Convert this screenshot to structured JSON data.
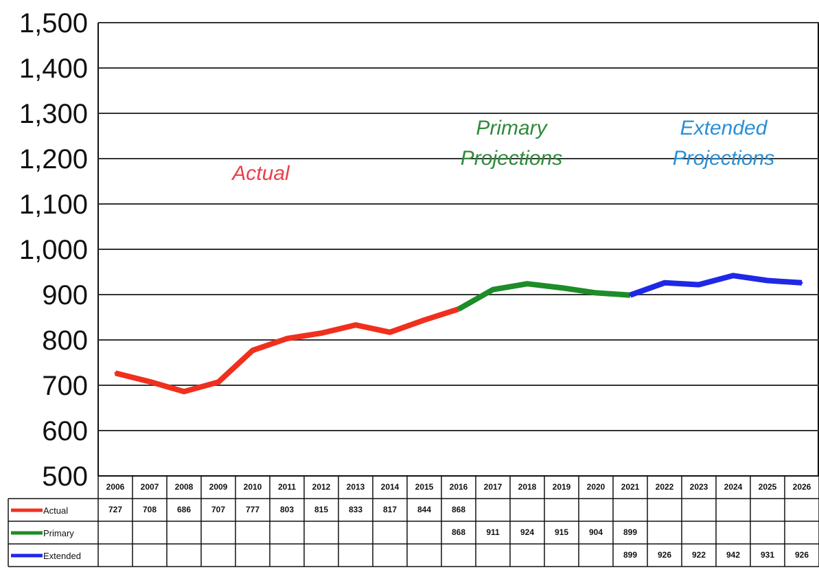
{
  "chart_data": {
    "type": "line",
    "x": [
      "2006",
      "2007",
      "2008",
      "2009",
      "2010",
      "2011",
      "2012",
      "2013",
      "2014",
      "2015",
      "2016",
      "2017",
      "2018",
      "2019",
      "2020",
      "2021",
      "2022",
      "2023",
      "2024",
      "2025",
      "2026"
    ],
    "ylim": [
      500,
      1500
    ],
    "yticks": [
      "500",
      "600",
      "700",
      "800",
      "900",
      "1,000",
      "1,100",
      "1,200",
      "1,300",
      "1,400",
      "1,500"
    ],
    "ytick_values": [
      500,
      600,
      700,
      800,
      900,
      1000,
      1100,
      1200,
      1300,
      1400,
      1500
    ],
    "grid": true,
    "legend_placement": "data table below chart",
    "series": [
      {
        "name": "Actual",
        "color": "#f0301e",
        "values": [
          727,
          708,
          686,
          707,
          777,
          803,
          815,
          833,
          817,
          844,
          868,
          null,
          null,
          null,
          null,
          null,
          null,
          null,
          null,
          null,
          null
        ]
      },
      {
        "name": "Primary",
        "color": "#1e8c28",
        "values": [
          null,
          null,
          null,
          null,
          null,
          null,
          null,
          null,
          null,
          null,
          868,
          911,
          924,
          915,
          904,
          899,
          null,
          null,
          null,
          null,
          null
        ]
      },
      {
        "name": "Extended",
        "color": "#1e28e6",
        "values": [
          null,
          null,
          null,
          null,
          null,
          null,
          null,
          null,
          null,
          null,
          null,
          null,
          null,
          null,
          null,
          899,
          926,
          922,
          942,
          931,
          926
        ]
      }
    ],
    "annotations": [
      {
        "lines": [
          "Actual"
        ],
        "color": "#e8404a"
      },
      {
        "lines": [
          "Primary",
          "Projections"
        ],
        "color": "#2e8b3a"
      },
      {
        "lines": [
          "Extended",
          "Projections"
        ],
        "color": "#2a8fd6"
      }
    ]
  }
}
